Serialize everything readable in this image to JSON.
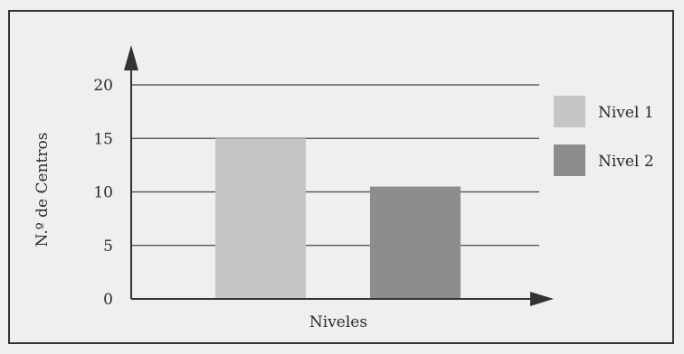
{
  "chart_data": {
    "type": "bar",
    "categories": [
      "Nivel 1",
      "Nivel 2"
    ],
    "values": [
      15,
      10.5
    ],
    "xlabel": "Niveles",
    "ylabel": "N.º de Centros",
    "ylim": [
      0,
      20
    ],
    "yticks": [
      0,
      5,
      10,
      15,
      20
    ],
    "grid": true,
    "legend": "right",
    "colors": [
      "#c4c5c5",
      "#8c8e8e"
    ]
  },
  "style": {
    "background": "#eef0f0",
    "border": "#333333",
    "axis": "#333333",
    "grid": "#444444"
  }
}
